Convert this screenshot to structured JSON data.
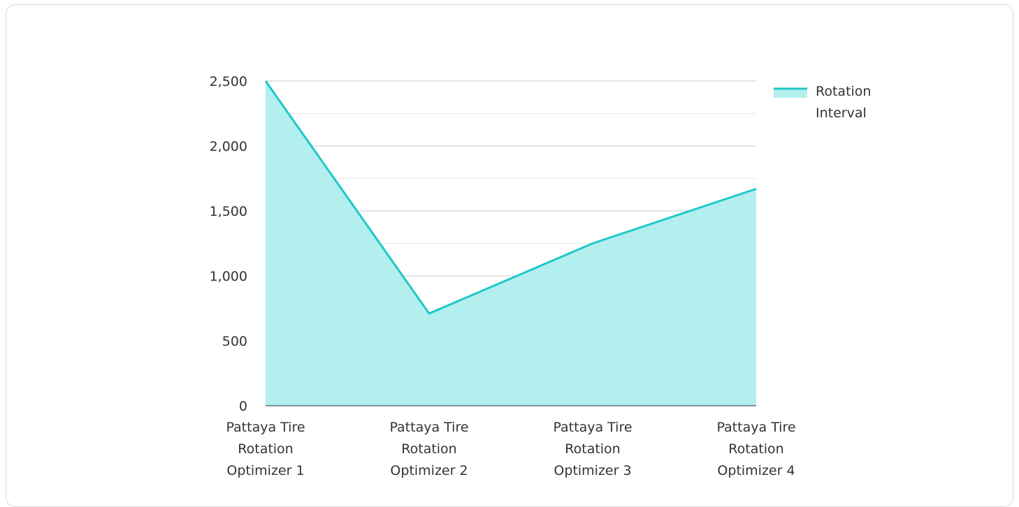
{
  "chart_data": {
    "type": "area",
    "categories": [
      [
        "Pattaya Tire",
        "Rotation",
        "Optimizer 1"
      ],
      [
        "Pattaya Tire",
        "Rotation",
        "Optimizer 2"
      ],
      [
        "Pattaya Tire",
        "Rotation",
        "Optimizer 3"
      ],
      [
        "Pattaya Tire",
        "Rotation",
        "Optimizer 4"
      ]
    ],
    "series": [
      {
        "name": "Rotation Interval",
        "values": [
          2500,
          710,
          1250,
          1670
        ]
      }
    ],
    "ylim": [
      0,
      2500
    ],
    "yticks": [
      "0",
      "500",
      "1,000",
      "1,500",
      "2,000",
      "2,500"
    ],
    "legend": {
      "position": "top-right",
      "label_lines": [
        "Rotation",
        "Interval"
      ]
    },
    "grid": true,
    "colors": {
      "line": "#1ec8c8",
      "fill": "#b2efee",
      "grid_major": "#c8c8c8",
      "grid_minor": "#e8e8e8",
      "axis": "#333333"
    }
  }
}
